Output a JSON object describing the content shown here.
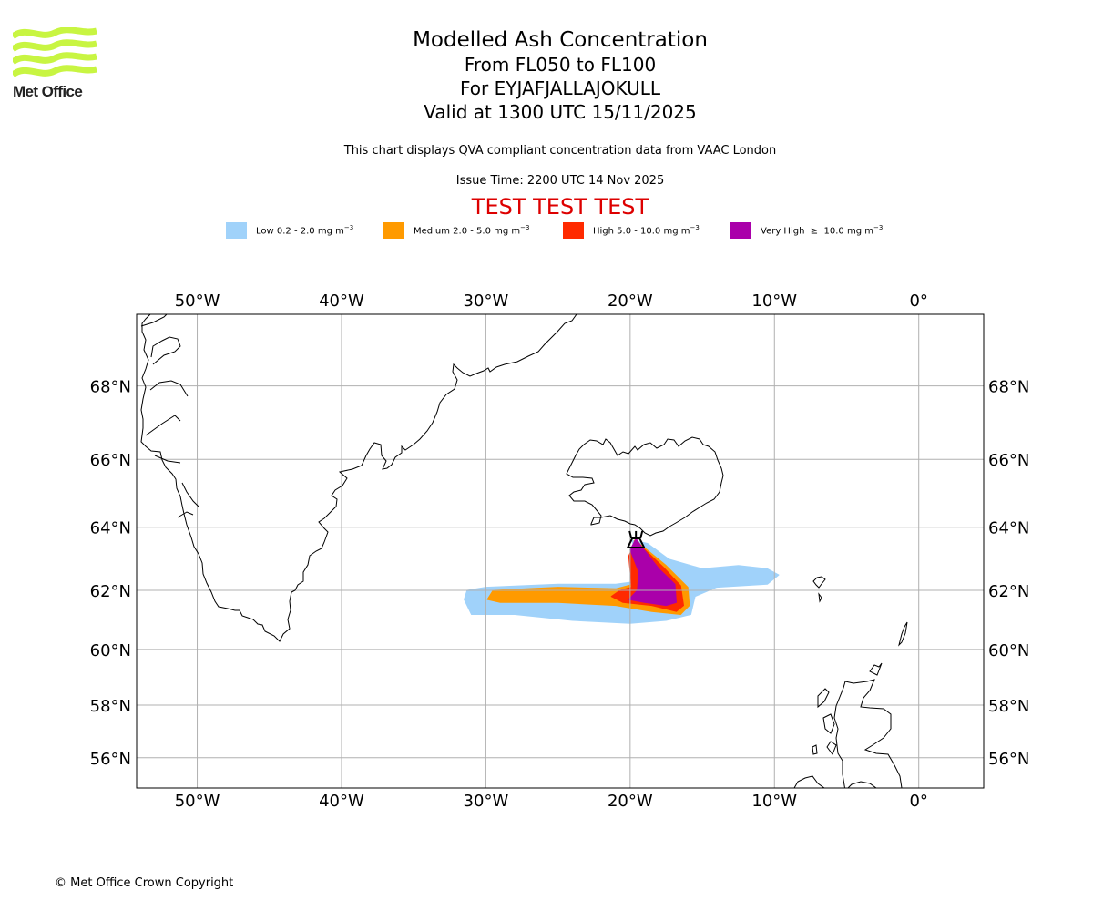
{
  "logo": {
    "name": "Met Office",
    "icon": "met-office-waves-logo",
    "color": "#c8f542"
  },
  "title": {
    "line1": "Modelled Ash Concentration",
    "line2": "From FL050 to FL100",
    "line3": "For EYJAFJALLAJOKULL",
    "line4": "Valid at 1300 UTC 15/11/2025"
  },
  "subtitle": "This chart displays QVA compliant concentration data from VAAC London",
  "issue_time": "Issue Time: 2200 UTC 14 Nov 2025",
  "test_banner": {
    "text": "TEST TEST TEST",
    "color": "#dd0000"
  },
  "legend": [
    {
      "label": "Low 0.2 - 2.0 mg m",
      "unit_exp": "−3",
      "color": "#a0d2fa"
    },
    {
      "label": "Medium 2.0 - 5.0 mg m",
      "unit_exp": "−3",
      "color": "#ff9a00"
    },
    {
      "label": "High 5.0 - 10.0 mg m",
      "unit_exp": "−3",
      "color": "#ff2a00"
    },
    {
      "label": "Very High  ≥  10.0 mg m",
      "unit_exp": "−3",
      "color": "#aa00aa"
    }
  ],
  "chart_data": {
    "type": "map",
    "title": "Modelled Ash Concentration",
    "extent": {
      "lon": [
        -54.2,
        4.5
      ],
      "lat": [
        54.8,
        69.8
      ]
    },
    "lon_ticks": [
      {
        "value": -50,
        "label": "50°W"
      },
      {
        "value": -40,
        "label": "40°W"
      },
      {
        "value": -30,
        "label": "30°W"
      },
      {
        "value": -20,
        "label": "20°W"
      },
      {
        "value": -10,
        "label": "10°W"
      },
      {
        "value": 0,
        "label": "0°"
      }
    ],
    "lat_ticks": [
      {
        "value": 56,
        "label": "56°N"
      },
      {
        "value": 58,
        "label": "58°N"
      },
      {
        "value": 60,
        "label": "60°N"
      },
      {
        "value": 62,
        "label": "62°N"
      },
      {
        "value": 64,
        "label": "64°N"
      },
      {
        "value": 66,
        "label": "66°N"
      },
      {
        "value": 68,
        "label": "68°N"
      }
    ],
    "grid": true,
    "volcano": {
      "name": "EYJAFJALLAJOKULL",
      "lon": -19.6,
      "lat": 63.6,
      "icon": "volcano-icon"
    },
    "ash_levels": [
      {
        "level": "Low",
        "range": "0.2 - 2.0 mg m-3",
        "color": "#a0d2fa",
        "polygon": [
          [
            -31.5,
            61.7
          ],
          [
            -31.3,
            62.0
          ],
          [
            -30.0,
            62.1
          ],
          [
            -25.0,
            62.2
          ],
          [
            -21.0,
            62.2
          ],
          [
            -19.4,
            62.3
          ],
          [
            -19.6,
            63.2
          ],
          [
            -19.9,
            63.6
          ],
          [
            -18.8,
            63.5
          ],
          [
            -17.3,
            63.0
          ],
          [
            -15.0,
            62.7
          ],
          [
            -12.5,
            62.8
          ],
          [
            -10.5,
            62.7
          ],
          [
            -9.7,
            62.5
          ],
          [
            -10.5,
            62.2
          ],
          [
            -14.0,
            62.1
          ],
          [
            -15.5,
            61.8
          ],
          [
            -15.8,
            61.2
          ],
          [
            -17.5,
            61.0
          ],
          [
            -20.0,
            60.9
          ],
          [
            -24.0,
            61.0
          ],
          [
            -28.0,
            61.2
          ],
          [
            -31.0,
            61.2
          ]
        ]
      },
      {
        "level": "Medium",
        "range": "2.0 - 5.0 mg m-3",
        "color": "#ff9a00",
        "polygon": [
          [
            -29.9,
            61.7
          ],
          [
            -29.5,
            62.0
          ],
          [
            -25.0,
            62.1
          ],
          [
            -21.0,
            62.05
          ],
          [
            -19.8,
            62.2
          ],
          [
            -19.9,
            63.2
          ],
          [
            -19.7,
            63.6
          ],
          [
            -19.1,
            63.4
          ],
          [
            -17.5,
            62.8
          ],
          [
            -16.0,
            62.1
          ],
          [
            -15.9,
            61.5
          ],
          [
            -16.5,
            61.2
          ],
          [
            -18.5,
            61.3
          ],
          [
            -21.0,
            61.5
          ],
          [
            -25.0,
            61.6
          ],
          [
            -29.0,
            61.6
          ]
        ]
      },
      {
        "level": "High",
        "range": "5.0 - 10.0 mg m-3",
        "color": "#ff2a00",
        "polygon": [
          [
            -21.3,
            61.8
          ],
          [
            -20.7,
            62.0
          ],
          [
            -19.9,
            62.1
          ],
          [
            -20.1,
            63.1
          ],
          [
            -19.6,
            63.65
          ],
          [
            -19.2,
            63.4
          ],
          [
            -17.7,
            62.75
          ],
          [
            -16.5,
            62.15
          ],
          [
            -16.3,
            61.5
          ],
          [
            -16.8,
            61.3
          ],
          [
            -18.5,
            61.5
          ],
          [
            -20.5,
            61.6
          ]
        ]
      },
      {
        "level": "Very High",
        "range": "≥ 10.0 mg m-3",
        "color": "#aa00aa",
        "polygon": [
          [
            -20.1,
            61.7
          ],
          [
            -19.5,
            62.0
          ],
          [
            -19.4,
            62.6
          ],
          [
            -20.0,
            63.3
          ],
          [
            -19.6,
            63.65
          ],
          [
            -19.3,
            63.45
          ],
          [
            -18.0,
            62.7
          ],
          [
            -16.9,
            62.2
          ],
          [
            -16.8,
            61.6
          ],
          [
            -17.5,
            61.5
          ],
          [
            -19.0,
            61.6
          ]
        ]
      }
    ]
  },
  "copyright": "© Met Office Crown Copyright"
}
